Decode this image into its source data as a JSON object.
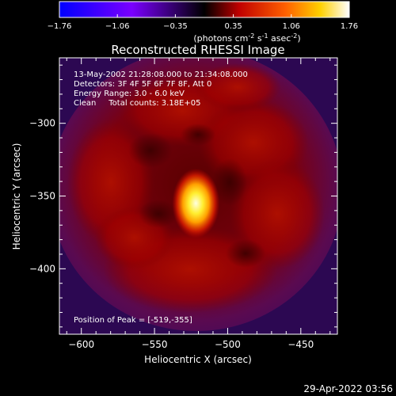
{
  "colorbar": {
    "ticks": [
      "-1.76",
      "-1.06",
      "-0.35",
      "0.35",
      "1.06",
      "1.76"
    ],
    "units_prefix": "(photons cm",
    "units_exp1": "-2",
    "units_mid": " s",
    "units_exp2": "-1",
    "units_mid2": " asec",
    "units_exp3": "-2",
    "units_suffix": ")",
    "colors": [
      "#0000ff",
      "#8000ff",
      "#000000",
      "#ff0000",
      "#ff8000",
      "#ffff00",
      "#ffffff"
    ]
  },
  "chart_data": {
    "type": "heatmap",
    "title": "Reconstructed RHESSI Image",
    "xlabel": "Heliocentric X (arcsec)",
    "ylabel": "Heliocentric Y (arcsec)",
    "xlim": [
      -615,
      -425
    ],
    "ylim": [
      -445,
      -255
    ],
    "x_ticks": [
      -600,
      -550,
      -500,
      -450
    ],
    "x_tick_labels": [
      "−600",
      "−550",
      "−500",
      "−450"
    ],
    "y_ticks": [
      -300,
      -350,
      -400
    ],
    "y_tick_labels": [
      "−300",
      "−350",
      "−400"
    ],
    "peak": {
      "x": -519,
      "y": -355
    },
    "annotations": [
      "13-May-2002 21:28:08.000 to 21:34:08.000",
      "Detectors: 3F 4F 5F 6F 7F 8F, Att 0",
      "Energy Range: 3.0 - 6.0 keV",
      "Clean     Total counts: 3.18E+05"
    ],
    "peak_label": "Position of Peak = [-519,-355]"
  },
  "footer": {
    "timestamp": "29-Apr-2022 03:56"
  }
}
